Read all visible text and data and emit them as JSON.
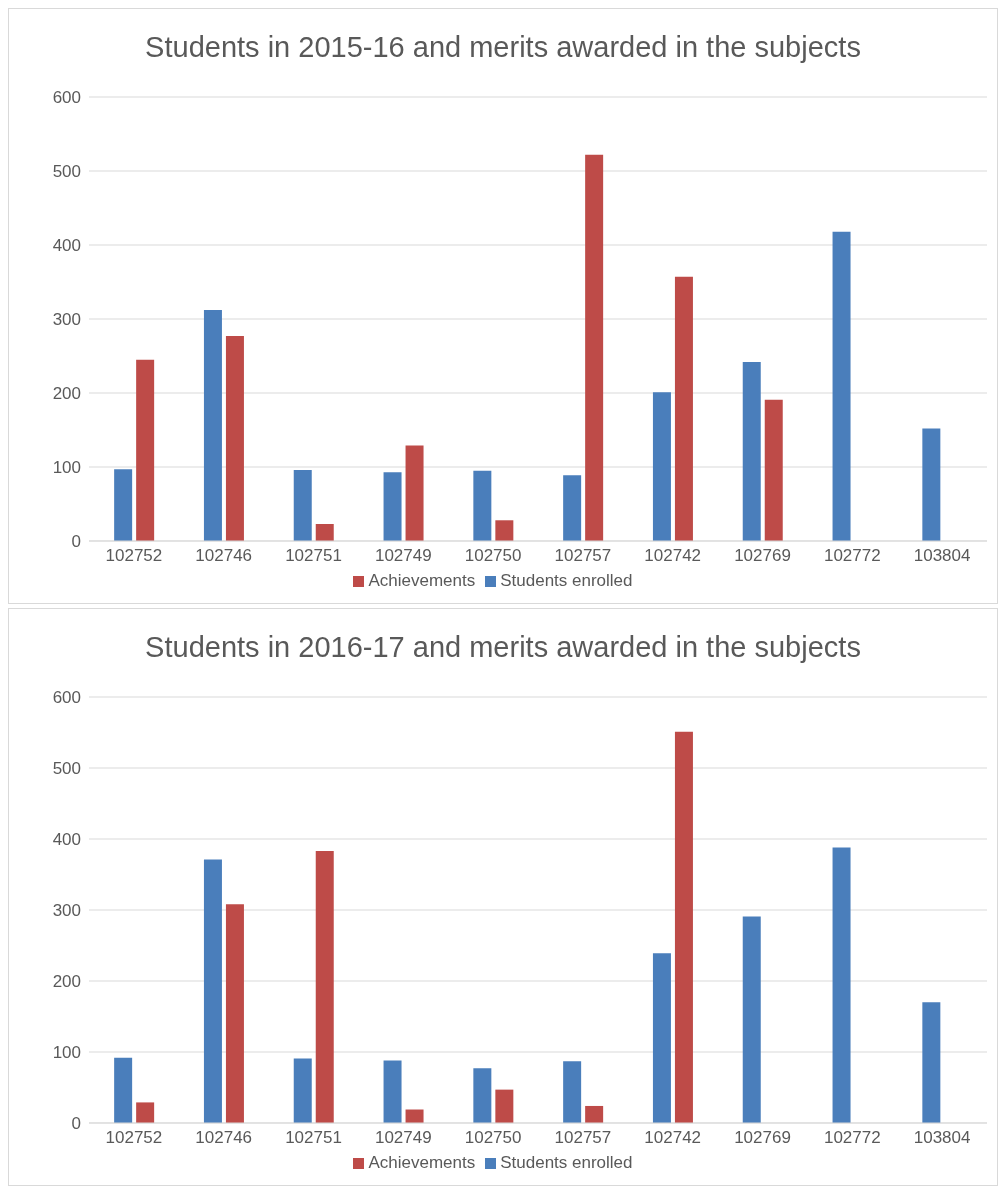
{
  "chart_data": [
    {
      "type": "bar",
      "title": "Students in 2015-16 and merits awarded in the subjects",
      "categories": [
        "102752",
        "102746",
        "102751",
        "102749",
        "102750",
        "102757",
        "102742",
        "102769",
        "102772",
        "103804"
      ],
      "series": [
        {
          "name": "Students enrolled",
          "color": "#4a7ebb",
          "values": [
            97,
            312,
            96,
            93,
            95,
            89,
            201,
            242,
            418,
            152
          ]
        },
        {
          "name": "Achievements",
          "color": "#be4b48",
          "values": [
            245,
            277,
            23,
            129,
            28,
            522,
            357,
            191,
            null,
            null
          ]
        }
      ],
      "ylim": [
        0,
        600
      ],
      "yticks": [
        0,
        100,
        200,
        300,
        400,
        500,
        600
      ],
      "grid": "y",
      "legend": "bottom"
    },
    {
      "type": "bar",
      "title": "Students in 2016-17 and merits awarded in the subjects",
      "categories": [
        "102752",
        "102746",
        "102751",
        "102749",
        "102750",
        "102757",
        "102742",
        "102769",
        "102772",
        "103804"
      ],
      "series": [
        {
          "name": "Students enrolled",
          "color": "#4a7ebb",
          "values": [
            92,
            371,
            91,
            88,
            77,
            87,
            239,
            291,
            388,
            170
          ]
        },
        {
          "name": "Achievements",
          "color": "#be4b48",
          "values": [
            29,
            308,
            383,
            19,
            47,
            24,
            551,
            null,
            null,
            null
          ]
        }
      ],
      "ylim": [
        0,
        600
      ],
      "yticks": [
        0,
        100,
        200,
        300,
        400,
        500,
        600
      ],
      "grid": "y",
      "legend": "bottom"
    }
  ]
}
